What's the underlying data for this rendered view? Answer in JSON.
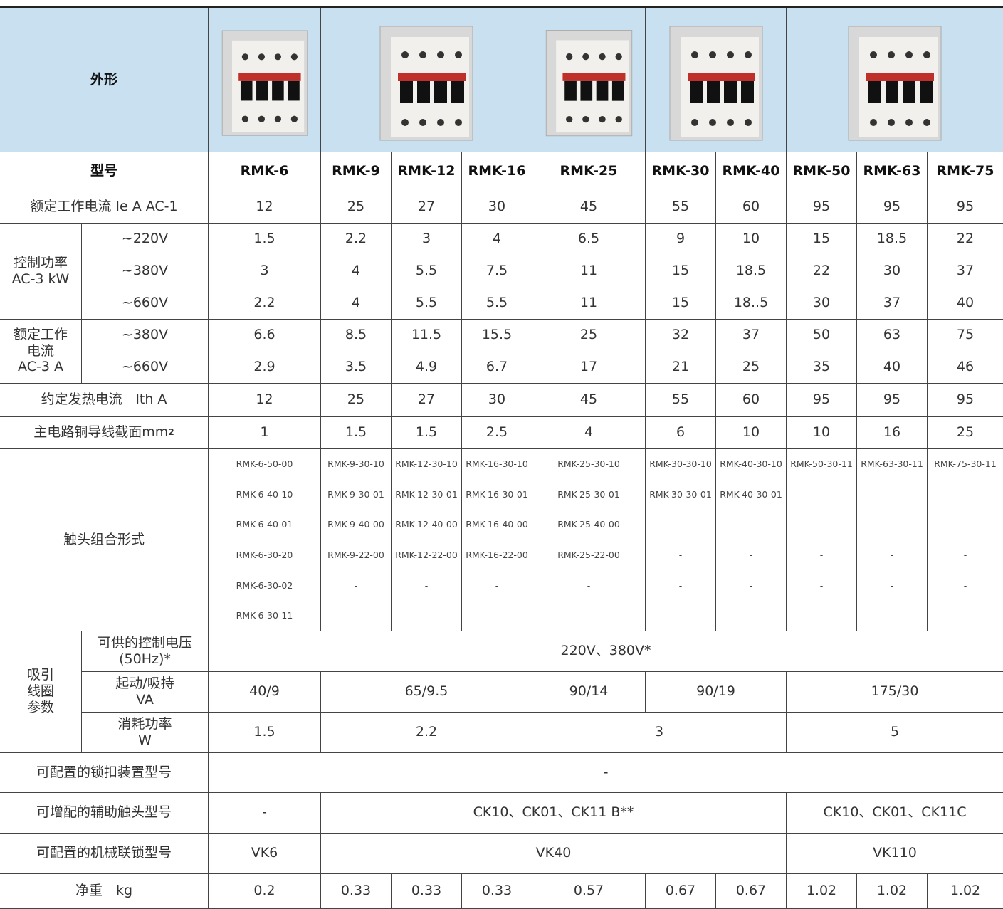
{
  "appearance_label": "外形",
  "model": {
    "label": "型号",
    "values": [
      "RMK-6",
      "RMK-9",
      "RMK-12",
      "RMK-16",
      "RMK-25",
      "RMK-30",
      "RMK-40",
      "RMK-50",
      "RMK-63",
      "RMK-75"
    ]
  },
  "ac1_current": {
    "label": "额定工作电流 Ie A AC-1",
    "values": [
      12,
      25,
      27,
      30,
      45,
      55,
      60,
      95,
      95,
      95
    ]
  },
  "control_power": {
    "label_lines": [
      "控制功率",
      "AC-3   kW"
    ],
    "rows": [
      {
        "voltage": "~220V",
        "values": [
          1.5,
          2.2,
          3,
          4,
          6.5,
          9,
          10,
          15,
          18.5,
          22
        ]
      },
      {
        "voltage": "~380V",
        "values": [
          3,
          4,
          5.5,
          7.5,
          11,
          15,
          18.5,
          22,
          30,
          37
        ]
      },
      {
        "voltage": "~660V",
        "values": [
          2.2,
          4,
          5.5,
          5.5,
          11,
          15,
          "18..5",
          30,
          37,
          40
        ]
      }
    ]
  },
  "ac3_current": {
    "label_lines": [
      "额定工作",
      "电流",
      "AC-3 A"
    ],
    "rows": [
      {
        "voltage": "~380V",
        "values": [
          6.6,
          8.5,
          11.5,
          15.5,
          25,
          32,
          37,
          50,
          63,
          75
        ]
      },
      {
        "voltage": "~660V",
        "values": [
          2.9,
          3.5,
          4.9,
          6.7,
          17,
          21,
          25,
          35,
          40,
          46
        ]
      }
    ]
  },
  "thermal_current": {
    "label": "约定发热电流　lth A",
    "values": [
      12,
      25,
      27,
      30,
      45,
      55,
      60,
      95,
      95,
      95
    ]
  },
  "cross_section": {
    "label": "主电路铜导线截面mm",
    "sup": "2",
    "values": [
      1,
      1.5,
      1.5,
      2.5,
      4,
      6,
      10,
      10,
      16,
      25
    ]
  },
  "contacts": {
    "label": "触头组合形式",
    "columns": [
      [
        "RMK-6-50-00",
        "RMK-6-40-10",
        "RMK-6-40-01",
        "RMK-6-30-20",
        "RMK-6-30-02",
        "RMK-6-30-11"
      ],
      [
        "RMK-9-30-10",
        "RMK-9-30-01",
        "RMK-9-40-00",
        "RMK-9-22-00",
        "-",
        "-"
      ],
      [
        "RMK-12-30-10",
        "RMK-12-30-01",
        "RMK-12-40-00",
        "RMK-12-22-00",
        "-",
        "-"
      ],
      [
        "RMK-16-30-10",
        "RMK-16-30-01",
        "RMK-16-40-00",
        "RMK-16-22-00",
        "-",
        "-"
      ],
      [
        "RMK-25-30-10",
        "RMK-25-30-01",
        "RMK-25-40-00",
        "RMK-25-22-00",
        "-",
        "-"
      ],
      [
        "RMK-30-30-10",
        "RMK-30-30-01",
        "-",
        "-",
        "-",
        "-"
      ],
      [
        "RMK-40-30-10",
        "RMK-40-30-01",
        "-",
        "-",
        "-",
        "-"
      ],
      [
        "RMK-50-30-11",
        "-",
        "-",
        "-",
        "-",
        "-"
      ],
      [
        "RMK-63-30-11",
        "-",
        "-",
        "-",
        "-",
        "-"
      ],
      [
        "RMK-75-30-11",
        "-",
        "-",
        "-",
        "-",
        "-"
      ]
    ]
  },
  "coil": {
    "label_lines": [
      "吸引",
      "线圈",
      "参数"
    ],
    "rows": [
      {
        "label_lines": [
          "可供的控制电压",
          "(50Hz)*"
        ],
        "values": [
          "220V、380V*"
        ]
      },
      {
        "label_lines": [
          "起动/吸持",
          "VA"
        ],
        "values": [
          "40/9",
          "65/9.5",
          "90/14",
          "90/19",
          "175/30"
        ]
      },
      {
        "label_lines": [
          "消耗功率",
          "W"
        ],
        "values": [
          1.5,
          2.2,
          3,
          5
        ]
      }
    ]
  },
  "latch": {
    "label": "可配置的锁扣装置型号",
    "values": [
      "-"
    ]
  },
  "aux_contacts": {
    "label": "可增配的辅助触头型号",
    "values": [
      "-",
      "CK10、CK01、CK11 B**",
      "CK10、CK01、CK11C"
    ]
  },
  "interlock": {
    "label": "可配置的机械联锁型号",
    "values": [
      "VK6",
      "VK40",
      "VK110"
    ]
  },
  "weight": {
    "label": "净重　kg",
    "values": [
      0.2,
      0.33,
      0.33,
      0.33,
      0.57,
      0.67,
      0.67,
      1.02,
      1.02,
      1.02
    ]
  }
}
